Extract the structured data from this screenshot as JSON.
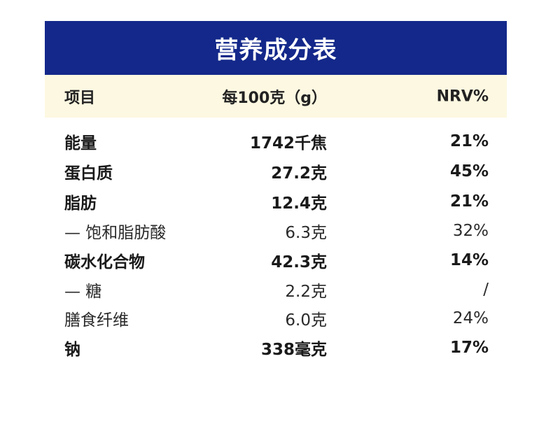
{
  "title": "营养成分表",
  "header": {
    "item": "项目",
    "per100": "每100克（g）",
    "nrv": "NRV%"
  },
  "rows": [
    {
      "name": "能量",
      "amount": "1742千焦",
      "nrv": "21%",
      "bold": true
    },
    {
      "name": "蛋白质",
      "amount": "27.2克",
      "nrv": "45%",
      "bold": true
    },
    {
      "name": "脂肪",
      "amount": "12.4克",
      "nrv": "21%",
      "bold": true
    },
    {
      "name": "— 饱和脂肪酸",
      "amount": "6.3克",
      "nrv": "32%",
      "bold": false
    },
    {
      "name": "碳水化合物",
      "amount": "42.3克",
      "nrv": "14%",
      "bold": true
    },
    {
      "name": "— 糖",
      "amount": "2.2克",
      "nrv": "/",
      "bold": false
    },
    {
      "name": "膳食纤维",
      "amount": "6.0克",
      "nrv": "24%",
      "bold": false
    },
    {
      "name": "钠",
      "amount": "338毫克",
      "nrv": "17%",
      "bold": true
    }
  ]
}
